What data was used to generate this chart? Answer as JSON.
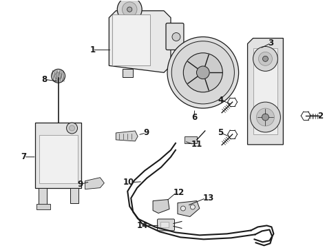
{
  "bg_color": "#ffffff",
  "figsize": [
    4.89,
    3.6
  ],
  "dpi": 100,
  "dark": "#1a1a1a",
  "gray": "#888888",
  "light_gray": "#dddddd",
  "mid_gray": "#bbbbbb"
}
